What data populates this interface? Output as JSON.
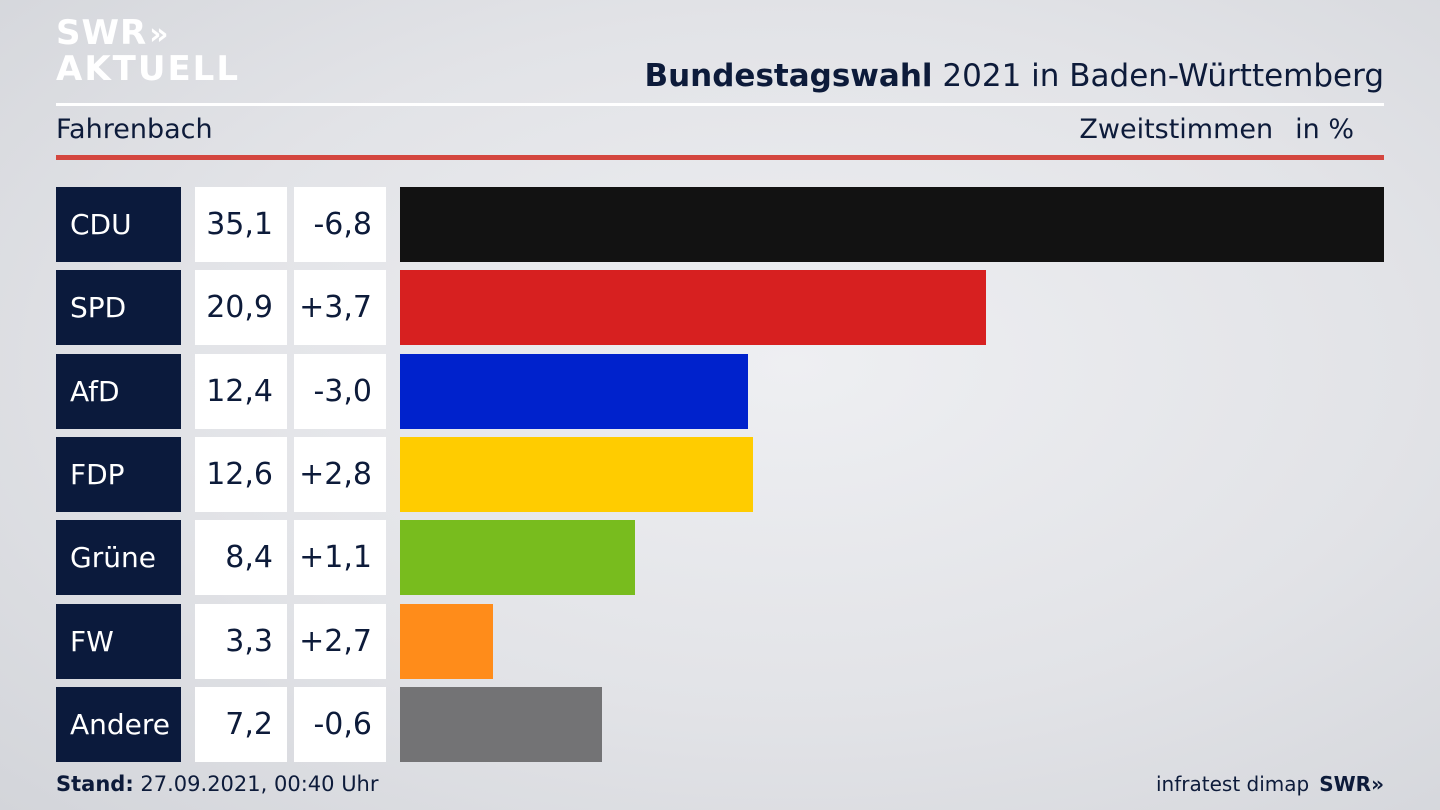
{
  "logo": {
    "line1": "SWR",
    "line1_icon": "»",
    "line2": "AKTUELL"
  },
  "header": {
    "title_bold": "Bundestagswahl",
    "title_rest": " 2021 in Baden-Württemberg",
    "location": "Fahrenbach",
    "vote_type": "Zweitstimmen",
    "unit": "in %"
  },
  "chart_data": {
    "type": "bar",
    "orientation": "horizontal",
    "categories": [
      "CDU",
      "SPD",
      "AfD",
      "FDP",
      "Grüne",
      "FW",
      "Andere"
    ],
    "values": [
      35.1,
      20.9,
      12.4,
      12.6,
      8.4,
      3.3,
      7.2
    ],
    "value_labels": [
      "35,1",
      "20,9",
      "12,4",
      "12,6",
      "8,4",
      "3,3",
      "7,2"
    ],
    "change_labels": [
      "-6,8",
      "+3,7",
      "-3,0",
      "+2,8",
      "+1,1",
      "+2,7",
      "-0,6"
    ],
    "colors": [
      "#121212",
      "#d72020",
      "#0022cc",
      "#ffcc00",
      "#78bc1e",
      "#ff8c1a",
      "#737375"
    ],
    "xlim": [
      0,
      35.1
    ]
  },
  "footer": {
    "stand_label": "Stand:",
    "stand_value": "27.09.2021, 00:40 Uhr",
    "source": "infratest dimap",
    "brand": "SWR»"
  }
}
